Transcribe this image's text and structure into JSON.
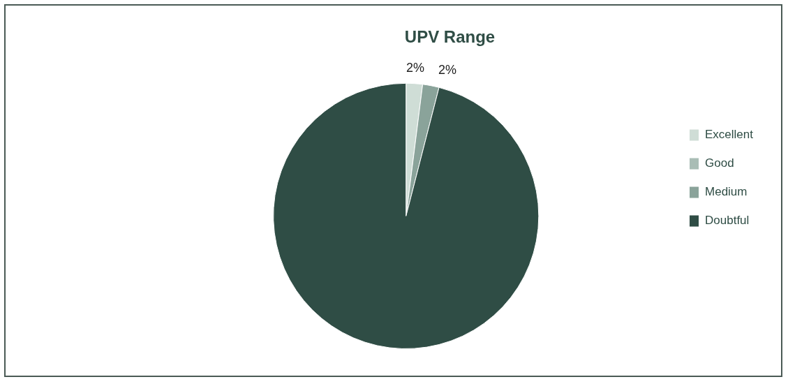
{
  "chart_data": {
    "type": "pie",
    "title": "UPV Range",
    "categories": [
      "Excellent",
      "Good",
      "Medium",
      "Doubtful"
    ],
    "values": [
      2,
      0,
      2,
      96
    ],
    "colors": [
      "#cfddd6",
      "#a9bdb5",
      "#8aa39a",
      "#2f4d45"
    ],
    "value_labels": [
      "2%",
      null,
      "2%",
      null
    ],
    "legend": "right"
  }
}
